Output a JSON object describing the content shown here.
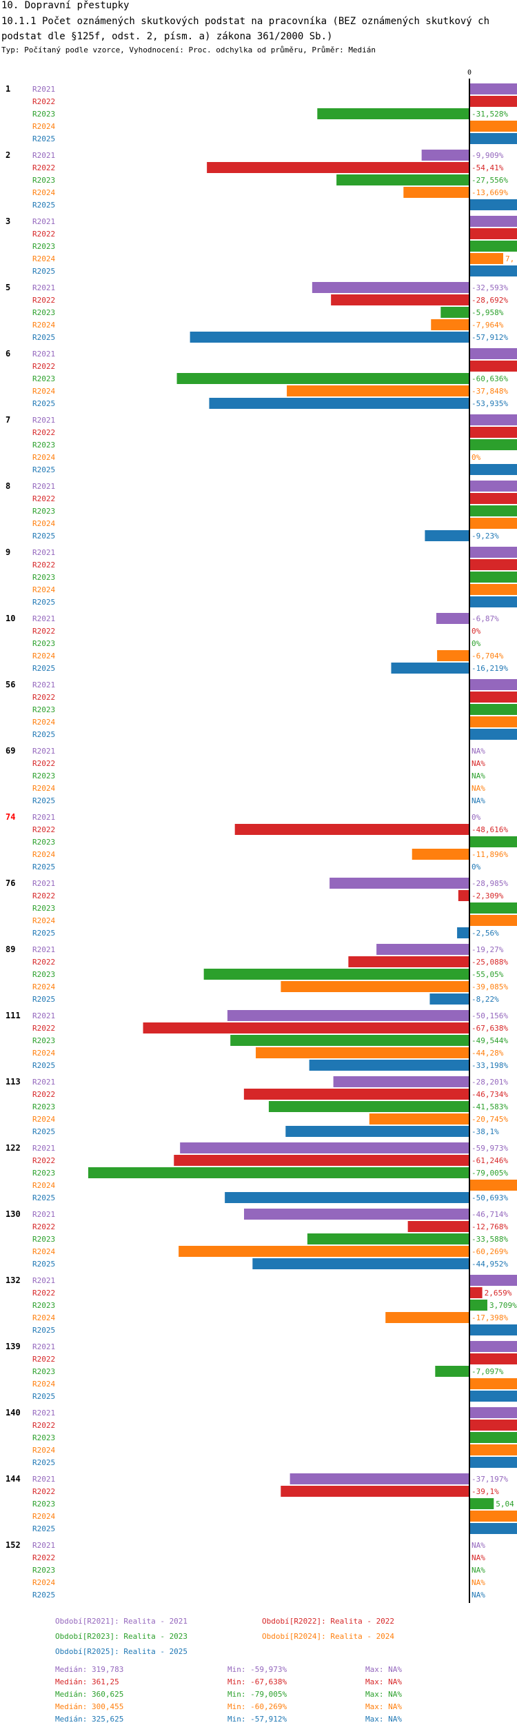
{
  "header": {
    "title": "10. Dopravní přestupky",
    "subtitle": "10.1.1 Počet oznámených skutkových podstat na pracovníka (BEZ oznámených skutkový ch podstat dle §125f, odst. 2, písm. a) zákona 361/2000 Sb.)",
    "info": "Typ: Počítaný podle vzorce, Vyhodnocení: Proc. odchylka od průměru, Průměr: Medián"
  },
  "colors": {
    "R2021": "#9467bd",
    "R2022": "#d62728",
    "R2023": "#2ca02c",
    "R2024": "#ff7f0e",
    "R2025": "#1f77b4",
    "highlight": "#ff0000"
  },
  "chart_data": {
    "type": "bar",
    "orientation": "horizontal",
    "zero_label": "0",
    "xlim": [
      -79.0,
      8.0
    ],
    "series_names": [
      "R2021",
      "R2022",
      "R2023",
      "R2024",
      "R2025"
    ],
    "groups": [
      {
        "id": "1",
        "highlight": false,
        "values": [
          null,
          null,
          -31.528,
          null,
          null
        ],
        "labels": [
          "",
          "",
          "-31,528%",
          "",
          ""
        ]
      },
      {
        "id": "2",
        "highlight": false,
        "values": [
          -9.909,
          -54.41,
          -27.556,
          -13.669,
          null
        ],
        "labels": [
          "-9,909%",
          "-54,41%",
          "-27,556%",
          "-13,669%",
          ""
        ]
      },
      {
        "id": "3",
        "highlight": false,
        "values": [
          null,
          null,
          null,
          7.0,
          null
        ],
        "labels": [
          "",
          "",
          "",
          "7,",
          ""
        ]
      },
      {
        "id": "5",
        "highlight": false,
        "values": [
          -32.593,
          -28.692,
          -5.958,
          -7.964,
          -57.912
        ],
        "labels": [
          "-32,593%",
          "-28,692%",
          "-5,958%",
          "-7,964%",
          "-57,912%"
        ]
      },
      {
        "id": "6",
        "highlight": false,
        "values": [
          null,
          null,
          -60.636,
          -37.848,
          -53.935
        ],
        "labels": [
          "",
          "",
          "-60,636%",
          "-37,848%",
          "-53,935%"
        ]
      },
      {
        "id": "7",
        "highlight": false,
        "values": [
          null,
          null,
          null,
          0,
          null
        ],
        "labels": [
          "",
          "",
          "",
          "0%",
          ""
        ]
      },
      {
        "id": "8",
        "highlight": false,
        "values": [
          null,
          null,
          null,
          null,
          -9.23
        ],
        "labels": [
          "",
          "",
          "",
          "",
          "-9,23%"
        ]
      },
      {
        "id": "9",
        "highlight": false,
        "values": [
          null,
          null,
          null,
          null,
          null
        ],
        "labels": [
          "",
          "",
          "",
          "",
          ""
        ]
      },
      {
        "id": "10",
        "highlight": false,
        "values": [
          -6.87,
          0,
          0,
          -6.704,
          -16.219
        ],
        "labels": [
          "-6,87%",
          "0%",
          "0%",
          "-6,704%",
          "-16,219%"
        ]
      },
      {
        "id": "56",
        "highlight": false,
        "values": [
          null,
          null,
          null,
          null,
          null
        ],
        "labels": [
          "",
          "",
          "",
          "",
          ""
        ]
      },
      {
        "id": "69",
        "highlight": false,
        "values": [
          null,
          null,
          null,
          null,
          null
        ],
        "labels": [
          "NA%",
          "NA%",
          "NA%",
          "NA%",
          "NA%"
        ]
      },
      {
        "id": "74",
        "highlight": true,
        "values": [
          0,
          -48.616,
          null,
          -11.896,
          0
        ],
        "labels": [
          "0%",
          "-48,616%",
          "",
          "-11,896%",
          "0%"
        ]
      },
      {
        "id": "76",
        "highlight": false,
        "values": [
          -28.985,
          -2.309,
          null,
          null,
          -2.56
        ],
        "labels": [
          "-28,985%",
          "-2,309%",
          "",
          "",
          "-2,56%"
        ]
      },
      {
        "id": "89",
        "highlight": false,
        "values": [
          -19.27,
          -25.088,
          -55.05,
          -39.085,
          -8.22
        ],
        "labels": [
          "-19,27%",
          "-25,088%",
          "-55,05%",
          "-39,085%",
          "-8,22%"
        ]
      },
      {
        "id": "111",
        "highlight": false,
        "values": [
          -50.156,
          -67.638,
          -49.544,
          -44.28,
          -33.198
        ],
        "labels": [
          "-50,156%",
          "-67,638%",
          "-49,544%",
          "-44,28%",
          "-33,198%"
        ]
      },
      {
        "id": "113",
        "highlight": false,
        "values": [
          -28.201,
          -46.734,
          -41.583,
          -20.745,
          -38.1
        ],
        "labels": [
          "-28,201%",
          "-46,734%",
          "-41,583%",
          "-20,745%",
          "-38,1%"
        ]
      },
      {
        "id": "122",
        "highlight": false,
        "values": [
          -59.973,
          -61.246,
          -79.005,
          null,
          -50.693
        ],
        "labels": [
          "-59,973%",
          "-61,246%",
          "-79,005%",
          "",
          "-50,693%"
        ]
      },
      {
        "id": "130",
        "highlight": false,
        "values": [
          -46.714,
          -12.768,
          -33.588,
          -60.269,
          -44.952
        ],
        "labels": [
          "-46,714%",
          "-12,768%",
          "-33,588%",
          "-60,269%",
          "-44,952%"
        ]
      },
      {
        "id": "132",
        "highlight": false,
        "values": [
          null,
          2.659,
          3.709,
          -17.398,
          null
        ],
        "labels": [
          "",
          "2,659%",
          "3,709%",
          "-17,398%",
          ""
        ]
      },
      {
        "id": "139",
        "highlight": false,
        "values": [
          null,
          null,
          -7.097,
          null,
          null
        ],
        "labels": [
          "",
          "",
          "-7,097%",
          "",
          ""
        ]
      },
      {
        "id": "140",
        "highlight": false,
        "values": [
          null,
          null,
          null,
          null,
          null
        ],
        "labels": [
          "",
          "",
          "",
          "",
          ""
        ]
      },
      {
        "id": "144",
        "highlight": false,
        "values": [
          -37.197,
          -39.1,
          5.04,
          null,
          null
        ],
        "labels": [
          "-37,197%",
          "-39,1%",
          "5,04",
          "",
          ""
        ]
      },
      {
        "id": "152",
        "highlight": false,
        "values": [
          null,
          null,
          null,
          null,
          null
        ],
        "labels": [
          "NA%",
          "NA%",
          "NA%",
          "NA%",
          "NA%"
        ]
      }
    ],
    "offscale": {
      "1": [
        0,
        1,
        3,
        4
      ],
      "2": [
        4
      ],
      "3": [
        0,
        1,
        2,
        4
      ],
      "6": [
        0,
        1
      ],
      "7": [
        0,
        1,
        2,
        4
      ],
      "8": [
        0,
        1,
        2,
        3
      ],
      "9": [
        0,
        1,
        2,
        3,
        4
      ],
      "56": [
        0,
        1,
        2,
        3,
        4
      ],
      "74": [
        2
      ],
      "76": [
        2,
        3
      ],
      "122": [
        3
      ],
      "132": [
        0,
        4
      ],
      "139": [
        0,
        1,
        3,
        4
      ],
      "140": [
        0,
        1,
        2,
        3,
        4
      ],
      "144": [
        3,
        4
      ]
    },
    "legend": [
      {
        "label": "Období[R2021]: Realita - 2021",
        "series": "R2021"
      },
      {
        "label": "Období[R2022]: Realita - 2022",
        "series": "R2022"
      },
      {
        "label": "Období[R2023]: Realita - 2023",
        "series": "R2023"
      },
      {
        "label": "Období[R2024]: Realita - 2024",
        "series": "R2024"
      },
      {
        "label": "Období[R2025]: Realita - 2025",
        "series": "R2025"
      }
    ],
    "stats": [
      {
        "series": "R2021",
        "median": "Medián: 319,783",
        "min": "Min: -59,973%",
        "max": "Max: NA%"
      },
      {
        "series": "R2022",
        "median": "Medián: 361,25",
        "min": "Min: -67,638%",
        "max": "Max: NA%"
      },
      {
        "series": "R2023",
        "median": "Medián: 360,625",
        "min": "Min: -79,005%",
        "max": "Max: NA%"
      },
      {
        "series": "R2024",
        "median": "Medián: 300,455",
        "min": "Min: -60,269%",
        "max": "Max: NA%"
      },
      {
        "series": "R2025",
        "median": "Medián: 325,625",
        "min": "Min: -57,912%",
        "max": "Max: NA%"
      }
    ]
  }
}
